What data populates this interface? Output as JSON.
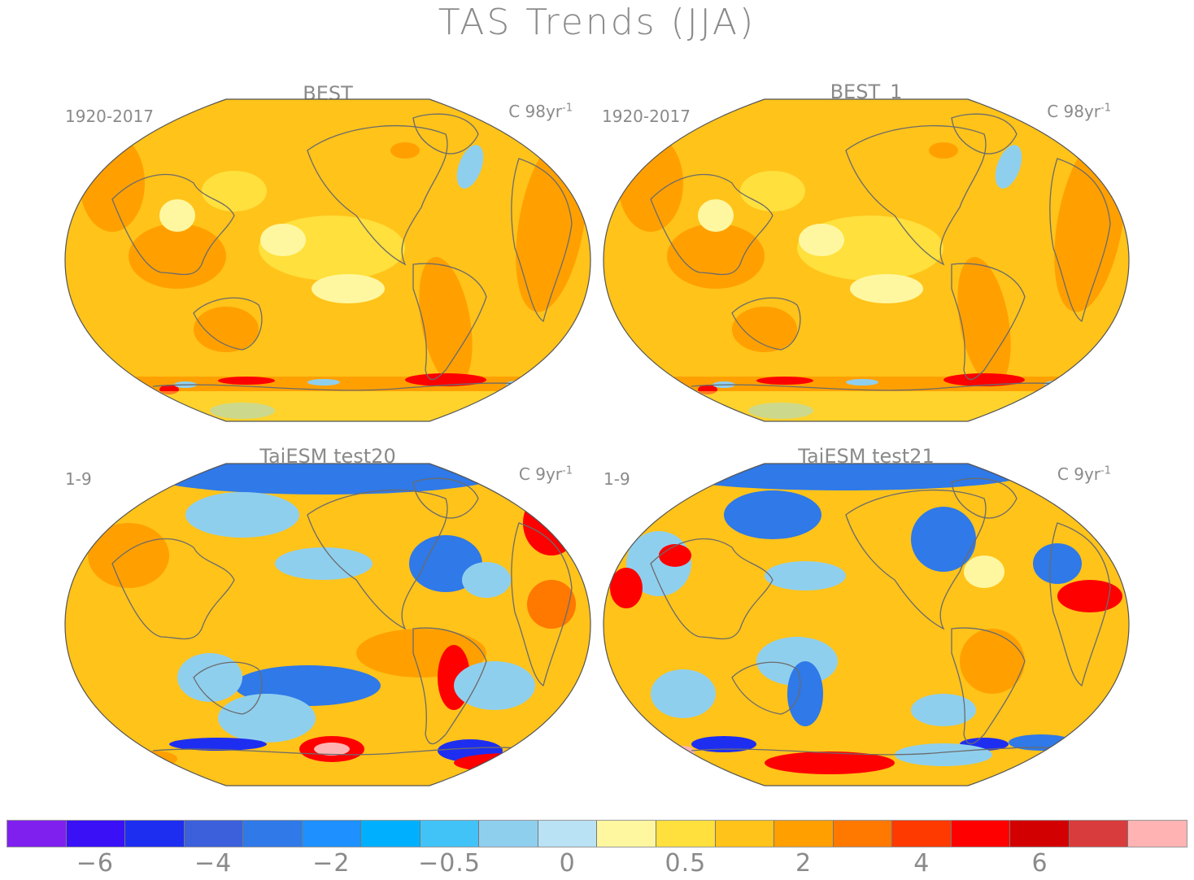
{
  "title": "TAS Trends (JJA)",
  "panels": [
    {
      "title": "BEST",
      "period": "1920-2017",
      "units_prefix": "C 98yr",
      "units_sup": "-1"
    },
    {
      "title": "BEST_1",
      "period": "1920-2017",
      "units_prefix": "C 98yr",
      "units_sup": "-1"
    },
    {
      "title": "TaiESM test20",
      "period": "1-9",
      "units_prefix": "C 9yr",
      "units_sup": "-1"
    },
    {
      "title": "TaiESM test21",
      "period": "1-9",
      "units_prefix": "C 9yr",
      "units_sup": "-1"
    }
  ],
  "colorbar": {
    "colors": [
      "#7f20ee",
      "#3a10f7",
      "#1e2ef0",
      "#3c5fdc",
      "#2f79e8",
      "#1e90ff",
      "#00b0ff",
      "#42c3f7",
      "#8fcfee",
      "#b9e2f5",
      "#fff7a0",
      "#ffe03c",
      "#ffc31a",
      "#ffa000",
      "#ff7800",
      "#ff3a00",
      "#ff0000",
      "#d20000",
      "#d93c3c",
      "#ffb3b3"
    ],
    "tick_labels": [
      "-6",
      "-4",
      "-2",
      "-0.5",
      "0",
      "0.5",
      "2",
      "4",
      "6"
    ]
  },
  "colors": {
    "land_outline": "#6b6b6b",
    "base_warm": "#ffc31a",
    "light_warm": "#ffe03c",
    "pale": "#fff7a0",
    "orange": "#ffa000",
    "deep_orange": "#ff7800",
    "red": "#ff0000",
    "blue": "#2f79e8",
    "light_blue": "#8fcfee",
    "deep_blue": "#1e2ef0"
  }
}
